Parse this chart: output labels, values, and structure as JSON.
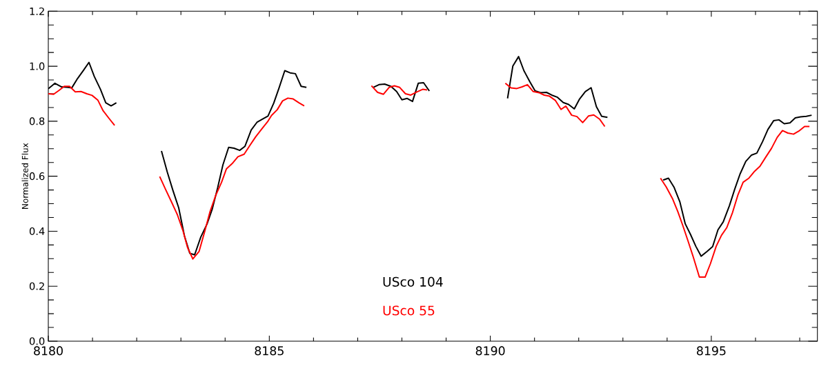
{
  "chart_data": {
    "type": "line",
    "ylabel": "Normalized Flux",
    "legend": "bottom",
    "line_style": "solid",
    "xlim": [
      8180,
      8197.4
    ],
    "ylim": [
      0,
      1.2
    ],
    "xticks": [
      8180,
      {
        "value": 8181,
        "label": null
      },
      {
        "value": 8182,
        "label": null
      },
      {
        "value": 8183,
        "label": null
      },
      {
        "value": 8184,
        "label": null
      },
      8185,
      {
        "value": 8186,
        "label": null
      },
      {
        "value": 8187,
        "label": null
      },
      {
        "value": 8188,
        "label": null
      },
      {
        "value": 8189,
        "label": null
      },
      8190,
      {
        "value": 8191,
        "label": null
      },
      {
        "value": 8192,
        "label": null
      },
      {
        "value": 8193,
        "label": null
      },
      {
        "value": 8194,
        "label": null
      },
      8195,
      {
        "value": 8196,
        "label": null
      },
      {
        "value": 8197,
        "label": null
      }
    ],
    "yticks": [
      {
        "value": 0,
        "label": "0.0"
      },
      {
        "value": 0.05,
        "label": null
      },
      {
        "value": 0.1,
        "label": null
      },
      {
        "value": 0.15,
        "label": null
      },
      {
        "value": 0.2,
        "label": "0.2"
      },
      {
        "value": 0.25,
        "label": null
      },
      {
        "value": 0.3,
        "label": null
      },
      {
        "value": 0.35,
        "label": null
      },
      {
        "value": 0.4,
        "label": "0.4"
      },
      {
        "value": 0.45,
        "label": null
      },
      {
        "value": 0.5,
        "label": null
      },
      {
        "value": 0.55,
        "label": null
      },
      {
        "value": 0.6,
        "label": "0.6"
      },
      {
        "value": 0.65,
        "label": null
      },
      {
        "value": 0.7,
        "label": null
      },
      {
        "value": 0.75,
        "label": null
      },
      {
        "value": 0.8,
        "label": "0.8"
      },
      {
        "value": 0.85,
        "label": null
      },
      {
        "value": 0.9,
        "label": null
      },
      {
        "value": 0.95,
        "label": null
      },
      {
        "value": 1.0,
        "label": "1.0"
      },
      {
        "value": 1.05,
        "label": null
      },
      {
        "value": 1.1,
        "label": null
      },
      {
        "value": 1.15,
        "label": null
      },
      {
        "value": 1.2,
        "label": "1.2"
      }
    ],
    "series": [
      {
        "name": "USco 104",
        "color": "#000000",
        "x": [
          8180.0,
          8180.15,
          8180.3,
          8180.45,
          8180.53,
          8180.66,
          8180.8,
          8180.92,
          8181.04,
          8181.18,
          8181.3,
          8181.42,
          8181.54,
          8182.0,
          8182.56,
          8182.69,
          8182.82,
          8182.95,
          8183.08,
          8183.2,
          8183.31,
          8183.45,
          8183.59,
          8183.71,
          8183.83,
          8183.95,
          8184.08,
          8184.2,
          8184.33,
          8184.45,
          8184.59,
          8184.72,
          8184.85,
          8184.97,
          8185.1,
          8185.22,
          8185.35,
          8185.47,
          8185.59,
          8185.72,
          8185.84,
          8186.5,
          8187.35,
          8187.48,
          8187.61,
          8187.75,
          8187.88,
          8188.0,
          8188.12,
          8188.24,
          8188.37,
          8188.49,
          8188.62,
          8189.5,
          8190.39,
          8190.51,
          8190.64,
          8190.76,
          8190.9,
          8191.01,
          8191.14,
          8191.27,
          8191.39,
          8191.52,
          8191.65,
          8191.77,
          8191.9,
          8192.02,
          8192.15,
          8192.28,
          8192.4,
          8192.52,
          8192.65,
          8193.3,
          8193.91,
          8194.03,
          8194.16,
          8194.29,
          8194.41,
          8194.53,
          8194.65,
          8194.77,
          8194.9,
          8195.03,
          8195.15,
          8195.27,
          8195.41,
          8195.53,
          8195.65,
          8195.78,
          8195.91,
          8196.03,
          8196.16,
          8196.28,
          8196.41,
          8196.53,
          8196.65,
          8196.78,
          8196.9,
          8197.02,
          8197.15,
          8197.27
        ],
        "values": [
          0.918,
          0.938,
          0.925,
          0.923,
          0.921,
          0.955,
          0.986,
          1.014,
          0.963,
          0.916,
          0.867,
          0.856,
          0.867,
          null,
          0.692,
          0.616,
          0.548,
          0.485,
          0.383,
          0.32,
          0.314,
          0.379,
          0.426,
          0.481,
          0.557,
          0.641,
          0.705,
          0.702,
          0.694,
          0.709,
          0.768,
          0.796,
          0.808,
          0.819,
          0.866,
          0.921,
          0.984,
          0.976,
          0.973,
          0.927,
          0.923,
          null,
          0.923,
          0.933,
          0.935,
          0.927,
          0.908,
          0.878,
          0.883,
          0.872,
          0.938,
          0.94,
          0.91,
          null,
          0.883,
          1.001,
          1.035,
          0.984,
          0.942,
          0.911,
          0.904,
          0.905,
          0.895,
          0.887,
          0.868,
          0.861,
          0.845,
          0.881,
          0.908,
          0.922,
          0.853,
          0.818,
          0.814,
          null,
          0.586,
          0.593,
          0.559,
          0.506,
          0.427,
          0.388,
          0.345,
          0.309,
          0.326,
          0.344,
          0.405,
          0.434,
          0.493,
          0.553,
          0.608,
          0.654,
          0.677,
          0.684,
          0.726,
          0.77,
          0.802,
          0.805,
          0.791,
          0.794,
          0.812,
          0.816,
          0.818,
          0.822
        ]
      },
      {
        "name": "USco 55",
        "color": "#ff0000",
        "x": [
          8180.0,
          8180.12,
          8180.24,
          8180.36,
          8180.48,
          8180.61,
          8180.74,
          8180.87,
          8180.99,
          8181.12,
          8181.24,
          8181.37,
          8181.5,
          8182.0,
          8182.52,
          8182.65,
          8182.78,
          8182.92,
          8183.05,
          8183.15,
          8183.27,
          8183.41,
          8183.54,
          8183.66,
          8183.79,
          8183.92,
          8184.03,
          8184.16,
          8184.29,
          8184.43,
          8184.56,
          8184.69,
          8184.82,
          8184.96,
          8185.05,
          8185.18,
          8185.3,
          8185.42,
          8185.54,
          8185.67,
          8185.79,
          8186.5,
          8187.31,
          8187.45,
          8187.58,
          8187.71,
          8187.83,
          8187.95,
          8188.08,
          8188.2,
          8188.33,
          8188.47,
          8188.57,
          8189.5,
          8190.34,
          8190.47,
          8190.6,
          8190.72,
          8190.84,
          8190.97,
          8191.1,
          8191.22,
          8191.34,
          8191.47,
          8191.6,
          8191.71,
          8191.84,
          8191.96,
          8192.09,
          8192.22,
          8192.34,
          8192.47,
          8192.59,
          8193.3,
          8193.85,
          8193.98,
          8194.12,
          8194.24,
          8194.35,
          8194.47,
          8194.59,
          8194.73,
          8194.86,
          8194.98,
          8195.11,
          8195.23,
          8195.35,
          8195.48,
          8195.6,
          8195.72,
          8195.85,
          8195.98,
          8196.1,
          8196.23,
          8196.36,
          8196.49,
          8196.61,
          8196.73,
          8196.86,
          8196.98,
          8197.11,
          8197.22
        ],
        "values": [
          0.9,
          0.898,
          0.912,
          0.927,
          0.927,
          0.907,
          0.908,
          0.9,
          0.894,
          0.877,
          0.838,
          0.811,
          0.785,
          null,
          0.599,
          0.553,
          0.509,
          0.46,
          0.4,
          0.341,
          0.299,
          0.326,
          0.4,
          0.472,
          0.531,
          0.578,
          0.627,
          0.646,
          0.671,
          0.68,
          0.712,
          0.743,
          0.77,
          0.798,
          0.821,
          0.842,
          0.874,
          0.884,
          0.881,
          0.867,
          0.856,
          null,
          0.929,
          0.905,
          0.898,
          0.923,
          0.929,
          0.923,
          0.9,
          0.895,
          0.906,
          0.916,
          0.914,
          null,
          0.938,
          0.921,
          0.919,
          0.925,
          0.933,
          0.908,
          0.904,
          0.895,
          0.891,
          0.876,
          0.843,
          0.855,
          0.822,
          0.817,
          0.795,
          0.819,
          0.823,
          0.808,
          0.781,
          null,
          0.593,
          0.561,
          0.519,
          0.472,
          0.423,
          0.366,
          0.307,
          0.233,
          0.233,
          0.282,
          0.345,
          0.385,
          0.413,
          0.468,
          0.531,
          0.578,
          0.593,
          0.618,
          0.636,
          0.669,
          0.701,
          0.741,
          0.766,
          0.757,
          0.753,
          0.764,
          0.781,
          0.781
        ]
      }
    ]
  }
}
